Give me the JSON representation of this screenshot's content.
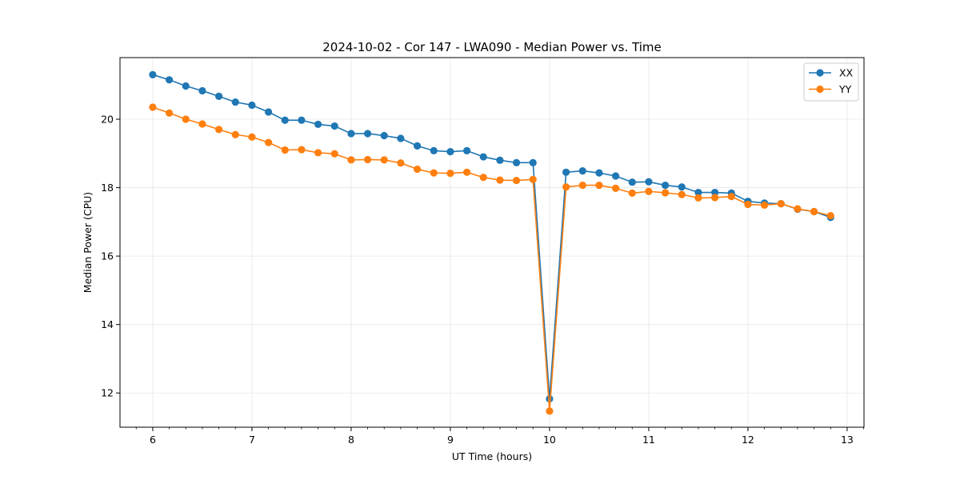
{
  "chart_data": {
    "type": "line",
    "title": "2024-10-02 - Cor 147 - LWA090 - Median Power vs. Time",
    "xlabel": "UT Time (hours)",
    "ylabel": "Median Power (CPU)",
    "xlim": [
      5.67,
      13.17
    ],
    "ylim": [
      11.0,
      21.8
    ],
    "xticks": [
      6,
      7,
      8,
      9,
      10,
      11,
      12,
      13
    ],
    "xtick_labels": [
      "6",
      "7",
      "8",
      "9",
      "10",
      "11",
      "12",
      "13"
    ],
    "yticks": [
      12,
      14,
      16,
      18,
      20
    ],
    "ytick_labels": [
      "12",
      "14",
      "16",
      "18",
      "20"
    ],
    "grid": true,
    "legend_position": "top-right",
    "x": [
      6.0,
      6.1667,
      6.3333,
      6.5,
      6.6667,
      6.8333,
      7.0,
      7.1667,
      7.3333,
      7.5,
      7.6667,
      7.8333,
      8.0,
      8.1667,
      8.3333,
      8.5,
      8.6667,
      8.8333,
      9.0,
      9.1667,
      9.3333,
      9.5,
      9.6667,
      9.8333,
      10.0,
      10.1667,
      10.3333,
      10.5,
      10.6667,
      10.8333,
      11.0,
      11.1667,
      11.3333,
      11.5,
      11.6667,
      11.8333,
      12.0,
      12.1667,
      12.3333,
      12.5,
      12.6667,
      12.8333
    ],
    "series": [
      {
        "name": "XX",
        "color": "#1f77b4",
        "values": [
          21.3,
          21.15,
          20.97,
          20.83,
          20.67,
          20.5,
          20.41,
          20.21,
          19.97,
          19.97,
          19.85,
          19.8,
          19.58,
          19.58,
          19.52,
          19.44,
          19.22,
          19.08,
          19.05,
          19.08,
          18.9,
          18.8,
          18.73,
          18.73,
          11.83,
          18.45,
          18.49,
          18.43,
          18.34,
          18.16,
          18.17,
          18.07,
          18.02,
          17.86,
          17.86,
          17.84,
          17.6,
          17.55,
          17.53,
          17.37,
          17.3,
          17.13
        ]
      },
      {
        "name": "YY",
        "color": "#ff7f0e",
        "values": [
          20.35,
          20.18,
          20.0,
          19.86,
          19.7,
          19.55,
          19.48,
          19.32,
          19.1,
          19.11,
          19.02,
          18.99,
          18.81,
          18.82,
          18.81,
          18.72,
          18.54,
          18.43,
          18.42,
          18.45,
          18.3,
          18.22,
          18.21,
          18.24,
          11.47,
          18.02,
          18.07,
          18.07,
          17.98,
          17.84,
          17.89,
          17.85,
          17.8,
          17.7,
          17.71,
          17.74,
          17.51,
          17.49,
          17.53,
          17.38,
          17.3,
          17.18
        ]
      }
    ]
  }
}
